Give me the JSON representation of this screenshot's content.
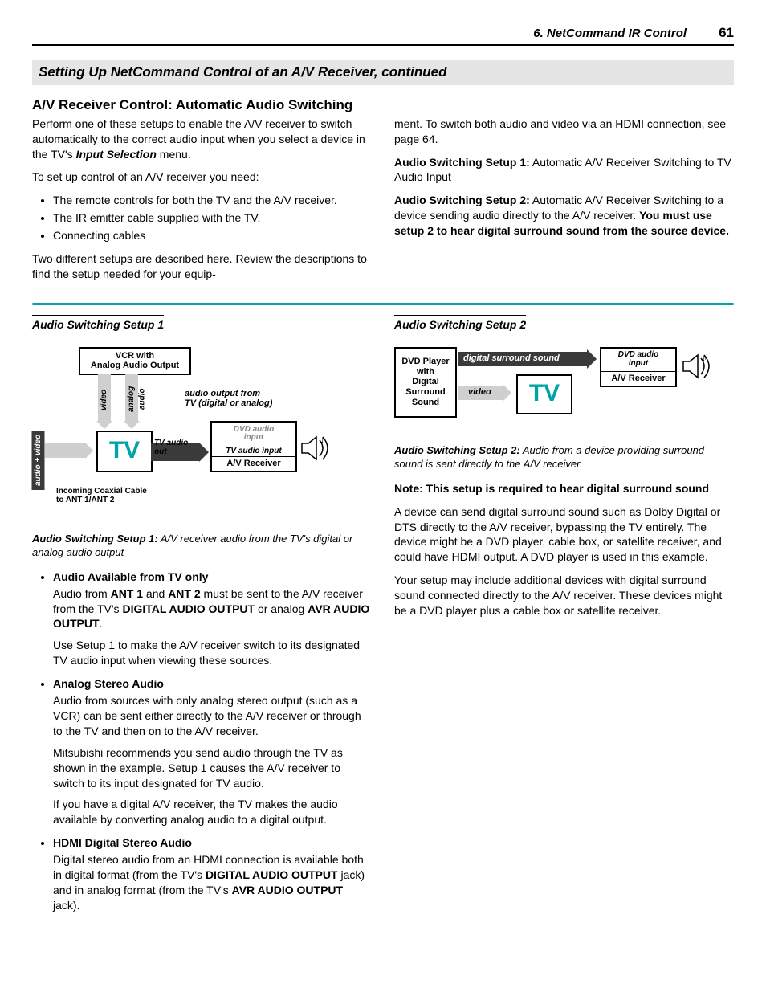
{
  "header": {
    "chapter": "6.  NetCommand IR Control",
    "page": "61"
  },
  "sectionBar": "Setting Up NetCommand Control of an A/V Receiver, continued",
  "subheading": "A/V Receiver Control:  Automatic Audio Switching",
  "intro": {
    "p1a": "Perform one of these setups to enable the A/V receiver to switch automatically to the correct audio input when you select a device in the TV's ",
    "p1b": "Input Selection",
    "p1c": " menu.",
    "p2": "To set up control of an A/V receiver you need:",
    "bullets": [
      "The remote controls for both the TV and the A/V receiver.",
      "The IR emitter cable supplied with the TV.",
      "Connecting cables"
    ],
    "p3": "Two different setups are described here.  Review the descriptions to find the setup needed for your equip-",
    "p3b": "ment.  To switch both audio and video via an HDMI connection, see page 64.",
    "as1a": "Audio Switching Setup 1:",
    "as1b": "  Automatic A/V Receiver Switching to TV Audio Input",
    "as2a": "Audio Switching Setup 2:",
    "as2b": "  Automatic A/V Receiver Switching to a device sending audio directly to the A/V receiver.  ",
    "as2c": "You must use setup 2 to hear digital surround sound from the source device."
  },
  "setup1": {
    "title": "Audio Switching Setup 1",
    "caption_lead": "Audio Switching Setup 1:",
    "caption_rest": "  A/V receiver audio from the TV's digital or analog audio output",
    "items": [
      {
        "head": "Audio Available from TV only",
        "paras": [
          {
            "segs": [
              {
                "t": "Audio from "
              },
              {
                "t": "ANT 1",
                "b": true
              },
              {
                "t": " and "
              },
              {
                "t": "ANT 2",
                "b": true
              },
              {
                "t": " must be sent to the A/V receiver from the TV's "
              },
              {
                "t": "DIGITAL AUDIO OUTPUT",
                "b": true
              },
              {
                "t": " or analog "
              },
              {
                "t": "AVR AUDIO OUTPUT",
                "b": true
              },
              {
                "t": "."
              }
            ]
          },
          {
            "segs": [
              {
                "t": "Use Setup 1 to make the A/V receiver switch to its designated TV audio input when viewing these sources."
              }
            ]
          }
        ]
      },
      {
        "head": "Analog Stereo Audio",
        "paras": [
          {
            "segs": [
              {
                "t": "Audio from sources with only analog stereo output (such as a VCR) can be sent either directly to the A/V receiver or through to the TV and then on to the A/V receiver."
              }
            ]
          },
          {
            "segs": [
              {
                "t": "Mitsubishi recommends you send audio through the TV as shown in the example.  Setup 1 causes the A/V receiver to switch to its input designated for TV audio."
              }
            ]
          },
          {
            "segs": [
              {
                "t": "If you have a digital A/V receiver, the TV makes the audio available by converting analog audio to a digital output."
              }
            ]
          }
        ]
      },
      {
        "head": "HDMI Digital Stereo Audio",
        "paras": [
          {
            "segs": [
              {
                "t": "Digital stereo audio from an HDMI connection is available both in digital format (from the TV's "
              },
              {
                "t": "DIGITAL AUDIO OUTPUT",
                "b": true
              },
              {
                "t": " jack) and in analog format (from the TV's "
              },
              {
                "t": "AVR AUDIO OUTPUT",
                "b": true
              },
              {
                "t": " jack)."
              }
            ]
          }
        ]
      }
    ],
    "dia": {
      "vcr": "VCR with\nAnalog Audio Output",
      "tv": "TV",
      "avr": "A/V Receiver",
      "video": "video",
      "analog_audio": "analog audio",
      "audio_out": "audio output from\nTV (digital or analog)",
      "dvd_in": "DVD audio\ninput",
      "tv_audio_in": "TV audio input",
      "tv_audio_out": "TV audio\nout",
      "audio_video": "audio + video",
      "coax": "Incoming Coaxial Cable\nto ANT 1/ANT 2"
    }
  },
  "setup2": {
    "title": "Audio Switching Setup 2",
    "caption_lead": "Audio Switching Setup 2:",
    "caption_rest": "  Audio from a device providing surround sound is sent directly to the A/V receiver.",
    "note_head": "Note:  This setup is required to hear digital surround sound",
    "p1": "A device can send digital surround sound such as Dolby Digital or DTS directly to the A/V receiver, bypassing the TV entirely.  The device might be a DVD player, cable box, or satellite receiver, and could have HDMI output.  A DVD player is used in this example.",
    "p2": "Your setup may include additional devices with digital surround sound connected directly to the A/V receiver.  These devices might be a DVD player plus a cable box or satellite receiver.",
    "dia": {
      "dvd": "DVD Player\nwith\nDigital\nSurround\nSound",
      "tv": "TV",
      "avr": "A/V Receiver",
      "surround": "digital surround sound",
      "video": "video",
      "dvd_in": "DVD audio\ninput"
    }
  }
}
